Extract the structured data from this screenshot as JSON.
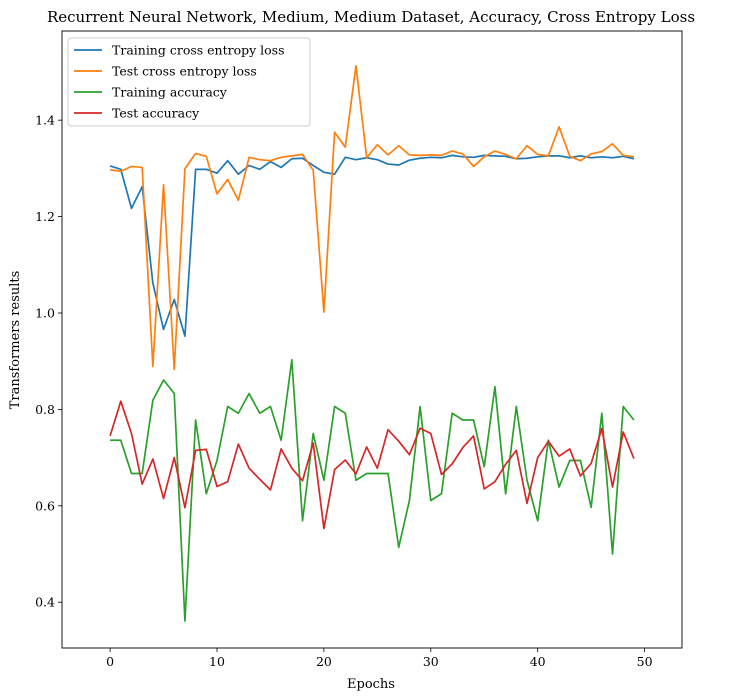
{
  "chart_data": {
    "type": "line",
    "title": "Recurrent Neural Network, Medium, Medium Dataset, Accuracy, Cross Entropy Loss",
    "xlabel": "Epochs",
    "ylabel": "Transformers results",
    "xlim": [
      -4.5,
      53.5
    ],
    "ylim": [
      0.305,
      1.585
    ],
    "xticks": [
      0,
      10,
      20,
      30,
      40,
      50
    ],
    "yticks": [
      0.4,
      0.6,
      0.8,
      1.0,
      1.2,
      1.4
    ],
    "xtick_labels": [
      "0",
      "10",
      "20",
      "30",
      "40",
      "50"
    ],
    "ytick_labels": [
      "0.4",
      "0.6",
      "0.8",
      "1.0",
      "1.2",
      "1.4"
    ],
    "legend_position": "upper-left",
    "x": [
      0,
      1,
      2,
      3,
      4,
      5,
      6,
      7,
      8,
      9,
      10,
      11,
      12,
      13,
      14,
      15,
      16,
      17,
      18,
      19,
      20,
      21,
      22,
      23,
      24,
      25,
      26,
      27,
      28,
      29,
      30,
      31,
      32,
      33,
      34,
      35,
      36,
      37,
      38,
      39,
      40,
      41,
      42,
      43,
      44,
      45,
      46,
      47,
      48,
      49
    ],
    "series": [
      {
        "name": "Training cross entropy loss",
        "color": "#1f77b4",
        "values": [
          1.305,
          1.298,
          1.217,
          1.262,
          1.062,
          0.966,
          1.028,
          0.952,
          1.298,
          1.298,
          1.29,
          1.316,
          1.288,
          1.306,
          1.298,
          1.314,
          1.302,
          1.32,
          1.321,
          1.306,
          1.292,
          1.288,
          1.323,
          1.318,
          1.322,
          1.318,
          1.309,
          1.307,
          1.317,
          1.321,
          1.323,
          1.322,
          1.327,
          1.324,
          1.323,
          1.327,
          1.326,
          1.325,
          1.32,
          1.321,
          1.324,
          1.326,
          1.326,
          1.322,
          1.326,
          1.322,
          1.324,
          1.322,
          1.325,
          1.32
        ]
      },
      {
        "name": "Test cross entropy loss",
        "color": "#ff7f0e",
        "values": [
          1.297,
          1.294,
          1.304,
          1.302,
          0.889,
          1.266,
          0.883,
          1.299,
          1.331,
          1.325,
          1.247,
          1.277,
          1.234,
          1.323,
          1.318,
          1.316,
          1.323,
          1.326,
          1.329,
          1.296,
          1.002,
          1.375,
          1.344,
          1.513,
          1.322,
          1.349,
          1.328,
          1.347,
          1.328,
          1.327,
          1.328,
          1.327,
          1.336,
          1.33,
          1.304,
          1.324,
          1.336,
          1.329,
          1.32,
          1.347,
          1.329,
          1.326,
          1.386,
          1.325,
          1.316,
          1.33,
          1.335,
          1.351,
          1.327,
          1.324
        ]
      },
      {
        "name": "Training accuracy",
        "color": "#2ca02c",
        "values": [
          0.736,
          0.736,
          0.667,
          0.667,
          0.819,
          0.861,
          0.833,
          0.361,
          0.778,
          0.625,
          0.694,
          0.806,
          0.792,
          0.833,
          0.792,
          0.806,
          0.736,
          0.903,
          0.569,
          0.75,
          0.653,
          0.806,
          0.792,
          0.653,
          0.667,
          0.667,
          0.667,
          0.514,
          0.611,
          0.806,
          0.611,
          0.625,
          0.792,
          0.778,
          0.778,
          0.681,
          0.847,
          0.625,
          0.806,
          0.653,
          0.569,
          0.736,
          0.639,
          0.694,
          0.694,
          0.597,
          0.792,
          0.5,
          0.806,
          0.778
        ]
      },
      {
        "name": "Test accuracy",
        "color": "#d62728",
        "values": [
          0.745,
          0.817,
          0.75,
          0.645,
          0.697,
          0.615,
          0.7,
          0.596,
          0.715,
          0.717,
          0.64,
          0.65,
          0.728,
          0.678,
          0.655,
          0.633,
          0.718,
          0.678,
          0.652,
          0.73,
          0.553,
          0.675,
          0.695,
          0.666,
          0.722,
          0.678,
          0.758,
          0.734,
          0.706,
          0.761,
          0.75,
          0.665,
          0.687,
          0.721,
          0.745,
          0.635,
          0.65,
          0.686,
          0.715,
          0.605,
          0.7,
          0.734,
          0.703,
          0.718,
          0.662,
          0.688,
          0.76,
          0.639,
          0.753,
          0.698
        ]
      }
    ]
  }
}
